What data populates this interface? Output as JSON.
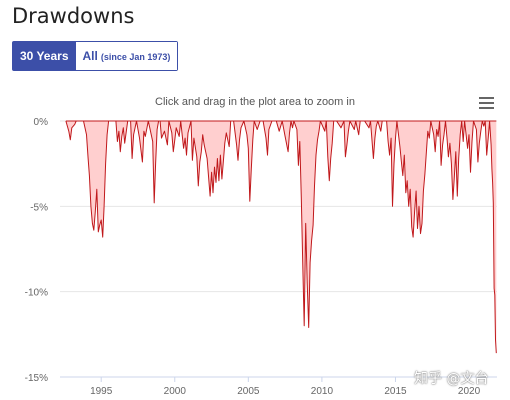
{
  "page": {
    "title": "Drawdowns"
  },
  "tabs": [
    {
      "label": "30 Years",
      "active": true
    },
    {
      "label": "All",
      "note": "(since Jan 1973)",
      "active": false
    }
  ],
  "zoom_hint": "Click and drag in the plot area to zoom in",
  "menu_icon": "hamburger-menu-icon",
  "watermark": "知乎 @文台",
  "colors": {
    "line": "#c0181b",
    "fill": "#ffcfcf",
    "accent": "#3c4fa8"
  },
  "chart_data": {
    "type": "area",
    "title": "",
    "xlabel": "",
    "ylabel": "",
    "xlim": [
      1992.2,
      2021.9
    ],
    "ylim": [
      -15,
      0
    ],
    "yticks": [
      0,
      -5,
      -10,
      -15
    ],
    "ytick_labels": [
      "0%",
      "-5%",
      "-10%",
      "-15%"
    ],
    "xticks": [
      1995,
      2000,
      2005,
      2010,
      2015,
      2020
    ],
    "xtick_labels": [
      "1995",
      "2000",
      "2005",
      "2010",
      "2015",
      "2020"
    ],
    "grid": true,
    "legend": "none",
    "points": [
      [
        1992.6,
        0
      ],
      [
        1992.8,
        -0.6
      ],
      [
        1992.9,
        -1.1
      ],
      [
        1993.0,
        -0.4
      ],
      [
        1993.2,
        -0.2
      ],
      [
        1993.3,
        0
      ],
      [
        1993.5,
        0
      ],
      [
        1993.8,
        0
      ],
      [
        1994.0,
        -0.8
      ],
      [
        1994.1,
        -2.1
      ],
      [
        1994.2,
        -3.2
      ],
      [
        1994.3,
        -5.0
      ],
      [
        1994.4,
        -6.0
      ],
      [
        1994.5,
        -6.4
      ],
      [
        1994.6,
        -5.3
      ],
      [
        1994.7,
        -4.0
      ],
      [
        1994.8,
        -6.5
      ],
      [
        1994.9,
        -6.1
      ],
      [
        1995.0,
        -5.8
      ],
      [
        1995.1,
        -6.8
      ],
      [
        1995.2,
        -5.0
      ],
      [
        1995.3,
        -2.5
      ],
      [
        1995.4,
        -0.8
      ],
      [
        1995.5,
        0
      ],
      [
        1996.0,
        0
      ],
      [
        1996.1,
        -1.2
      ],
      [
        1996.2,
        -0.6
      ],
      [
        1996.3,
        -1.8
      ],
      [
        1996.4,
        -0.9
      ],
      [
        1996.5,
        -0.4
      ],
      [
        1996.6,
        -1.3
      ],
      [
        1996.8,
        0
      ],
      [
        1997.0,
        0
      ],
      [
        1997.1,
        -2.2
      ],
      [
        1997.2,
        -0.8
      ],
      [
        1997.4,
        0
      ],
      [
        1997.6,
        -1.0
      ],
      [
        1997.8,
        -2.4
      ],
      [
        1997.9,
        -0.6
      ],
      [
        1998.0,
        -0.9
      ],
      [
        1998.2,
        0
      ],
      [
        1998.5,
        -1.2
      ],
      [
        1998.6,
        -4.8
      ],
      [
        1998.7,
        -2.5
      ],
      [
        1998.8,
        -0.5
      ],
      [
        1998.9,
        0
      ],
      [
        1999.0,
        0
      ],
      [
        1999.1,
        -1.0
      ],
      [
        1999.3,
        -0.6
      ],
      [
        1999.5,
        -1.4
      ],
      [
        1999.6,
        0
      ],
      [
        1999.8,
        -0.7
      ],
      [
        1999.9,
        -1.8
      ],
      [
        2000.0,
        -1.1
      ],
      [
        2000.1,
        -0.4
      ],
      [
        2000.3,
        -0.9
      ],
      [
        2000.4,
        0
      ],
      [
        2000.6,
        -1.6
      ],
      [
        2000.7,
        -1.0
      ],
      [
        2000.8,
        -2.0
      ],
      [
        2000.9,
        -0.7
      ],
      [
        2001.1,
        0
      ],
      [
        2001.2,
        -2.3
      ],
      [
        2001.3,
        -1.0
      ],
      [
        2001.5,
        -2.1
      ],
      [
        2001.6,
        -3.8
      ],
      [
        2001.7,
        -2.4
      ],
      [
        2001.8,
        -1.8
      ],
      [
        2001.9,
        -0.8
      ],
      [
        2002.0,
        -1.4
      ],
      [
        2002.2,
        -2.2
      ],
      [
        2002.3,
        -3.3
      ],
      [
        2002.4,
        -4.4
      ],
      [
        2002.5,
        -3.0
      ],
      [
        2002.6,
        -4.2
      ],
      [
        2002.7,
        -2.7
      ],
      [
        2002.8,
        -3.6
      ],
      [
        2002.9,
        -2.2
      ],
      [
        2003.0,
        -3.5
      ],
      [
        2003.1,
        -2.0
      ],
      [
        2003.2,
        -3.4
      ],
      [
        2003.3,
        -2.4
      ],
      [
        2003.4,
        -1.3
      ],
      [
        2003.5,
        -0.7
      ],
      [
        2003.7,
        -1.5
      ],
      [
        2003.8,
        0
      ],
      [
        2004.0,
        0
      ],
      [
        2004.2,
        -1.4
      ],
      [
        2004.3,
        -2.3
      ],
      [
        2004.4,
        -1.1
      ],
      [
        2004.5,
        -0.4
      ],
      [
        2004.7,
        0
      ],
      [
        2004.9,
        -0.8
      ],
      [
        2005.0,
        -1.6
      ],
      [
        2005.1,
        -4.7
      ],
      [
        2005.2,
        -2.8
      ],
      [
        2005.3,
        -1.1
      ],
      [
        2005.4,
        0
      ],
      [
        2005.6,
        -0.5
      ],
      [
        2005.8,
        0
      ],
      [
        2006.0,
        0
      ],
      [
        2006.2,
        -1.0
      ],
      [
        2006.3,
        -2.0
      ],
      [
        2006.4,
        -0.5
      ],
      [
        2006.6,
        0
      ],
      [
        2006.9,
        0
      ],
      [
        2007.1,
        -0.6
      ],
      [
        2007.3,
        0
      ],
      [
        2007.5,
        -0.9
      ],
      [
        2007.7,
        -1.8
      ],
      [
        2007.8,
        -0.7
      ],
      [
        2007.9,
        0
      ],
      [
        2008.0,
        -0.4
      ],
      [
        2008.1,
        0
      ],
      [
        2008.3,
        -0.5
      ],
      [
        2008.4,
        -2.6
      ],
      [
        2008.5,
        -1.2
      ],
      [
        2008.6,
        -4.5
      ],
      [
        2008.7,
        -8.5
      ],
      [
        2008.8,
        -12.0
      ],
      [
        2008.9,
        -6.0
      ],
      [
        2009.0,
        -9.5
      ],
      [
        2009.1,
        -12.1
      ],
      [
        2009.2,
        -8.3
      ],
      [
        2009.3,
        -7.0
      ],
      [
        2009.4,
        -6.1
      ],
      [
        2009.5,
        -3.8
      ],
      [
        2009.6,
        -2.0
      ],
      [
        2009.7,
        -1.1
      ],
      [
        2009.8,
        -0.6
      ],
      [
        2009.9,
        0
      ],
      [
        2010.2,
        -0.6
      ],
      [
        2010.3,
        0
      ],
      [
        2010.4,
        -2.1
      ],
      [
        2010.5,
        -3.5
      ],
      [
        2010.6,
        -2.2
      ],
      [
        2010.7,
        -1.3
      ],
      [
        2010.8,
        0
      ],
      [
        2011.0,
        0
      ],
      [
        2011.3,
        -0.4
      ],
      [
        2011.5,
        0
      ],
      [
        2011.6,
        -2.1
      ],
      [
        2011.7,
        -1.4
      ],
      [
        2011.8,
        -0.6
      ],
      [
        2011.9,
        0
      ],
      [
        2012.2,
        -0.5
      ],
      [
        2012.3,
        0
      ],
      [
        2012.5,
        -0.8
      ],
      [
        2012.6,
        0
      ],
      [
        2012.9,
        0
      ],
      [
        2013.2,
        -0.4
      ],
      [
        2013.3,
        0
      ],
      [
        2013.5,
        -2.2
      ],
      [
        2013.6,
        -1.0
      ],
      [
        2013.7,
        -0.3
      ],
      [
        2013.8,
        0
      ],
      [
        2014.0,
        -0.6
      ],
      [
        2014.1,
        0
      ],
      [
        2014.4,
        0
      ],
      [
        2014.5,
        -1.2
      ],
      [
        2014.6,
        -2.0
      ],
      [
        2014.7,
        -1.0
      ],
      [
        2014.8,
        -5.0
      ],
      [
        2014.9,
        -2.5
      ],
      [
        2015.0,
        -1.0
      ],
      [
        2015.1,
        0
      ],
      [
        2015.3,
        -1.5
      ],
      [
        2015.4,
        -2.4
      ],
      [
        2015.5,
        -3.2
      ],
      [
        2015.6,
        -2.0
      ],
      [
        2015.7,
        -4.2
      ],
      [
        2015.8,
        -3.5
      ],
      [
        2015.9,
        -5.0
      ],
      [
        2016.0,
        -4.0
      ],
      [
        2016.1,
        -6.2
      ],
      [
        2016.2,
        -6.8
      ],
      [
        2016.3,
        -5.3
      ],
      [
        2016.4,
        -4.1
      ],
      [
        2016.5,
        -6.3
      ],
      [
        2016.6,
        -5.0
      ],
      [
        2016.7,
        -6.6
      ],
      [
        2016.8,
        -6.0
      ],
      [
        2016.9,
        -4.1
      ],
      [
        2017.0,
        -3.1
      ],
      [
        2017.1,
        -1.8
      ],
      [
        2017.2,
        -0.6
      ],
      [
        2017.3,
        -1.0
      ],
      [
        2017.4,
        0
      ],
      [
        2017.6,
        -0.8
      ],
      [
        2017.7,
        -1.8
      ],
      [
        2017.8,
        -0.5
      ],
      [
        2017.9,
        -0.9
      ],
      [
        2018.0,
        0
      ],
      [
        2018.1,
        -2.6
      ],
      [
        2018.2,
        -1.4
      ],
      [
        2018.3,
        -0.8
      ],
      [
        2018.4,
        0
      ],
      [
        2018.5,
        -1.0
      ],
      [
        2018.6,
        -2.1
      ],
      [
        2018.7,
        -1.3
      ],
      [
        2018.8,
        -2.5
      ],
      [
        2018.9,
        -4.6
      ],
      [
        2019.0,
        -3.3
      ],
      [
        2019.1,
        -1.8
      ],
      [
        2019.2,
        -4.4
      ],
      [
        2019.3,
        -2.2
      ],
      [
        2019.4,
        -0.8
      ],
      [
        2019.5,
        0
      ],
      [
        2019.6,
        -1.2
      ],
      [
        2019.7,
        0
      ],
      [
        2019.9,
        -1.6
      ],
      [
        2020.0,
        -0.8
      ],
      [
        2020.1,
        -3.0
      ],
      [
        2020.2,
        -1.2
      ],
      [
        2020.3,
        0
      ],
      [
        2020.5,
        -0.5
      ],
      [
        2020.6,
        -2.4
      ],
      [
        2020.7,
        -1.3
      ],
      [
        2020.8,
        -0.6
      ],
      [
        2020.9,
        0
      ],
      [
        2021.0,
        -0.3
      ],
      [
        2021.1,
        0
      ],
      [
        2021.2,
        -2.0
      ],
      [
        2021.3,
        -1.0
      ],
      [
        2021.4,
        0
      ],
      [
        2021.5,
        -1.4
      ],
      [
        2021.55,
        -2.8
      ],
      [
        2021.6,
        -3.6
      ],
      [
        2021.65,
        -4.8
      ],
      [
        2021.7,
        -9.8
      ],
      [
        2021.75,
        -10.2
      ],
      [
        2021.8,
        -12.8
      ],
      [
        2021.85,
        -13.6
      ]
    ]
  }
}
